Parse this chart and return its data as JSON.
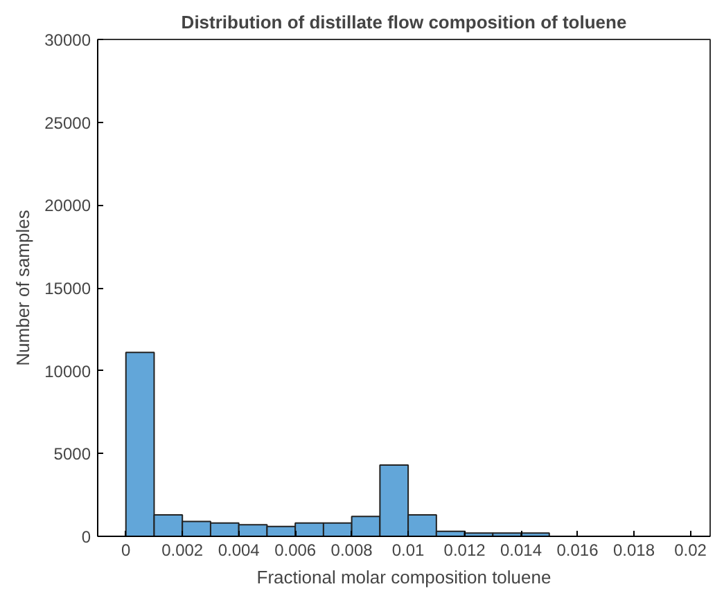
{
  "chart_data": {
    "type": "histogram",
    "title": "Distribution of distillate flow composition of toluene",
    "xlabel": "Fractional molar composition toluene",
    "ylabel": "Number of samples",
    "bins": [
      0,
      0.001,
      0.002,
      0.003,
      0.004,
      0.005,
      0.006,
      0.007,
      0.008,
      0.009,
      0.01,
      0.011,
      0.012,
      0.013,
      0.014,
      0.015,
      0.016,
      0.017,
      0.018,
      0.019,
      0.02
    ],
    "values": [
      11100,
      1300,
      900,
      800,
      700,
      600,
      800,
      800,
      1200,
      4300,
      1300,
      300,
      200,
      200,
      200,
      null,
      null,
      null,
      null,
      null
    ],
    "color": "#62a6d9",
    "xlim": [
      -0.001,
      0.0207
    ],
    "ylim": [
      0,
      30000
    ],
    "xticks": [
      0,
      0.002,
      0.004,
      0.006,
      0.008,
      0.01,
      0.012,
      0.014,
      0.016,
      0.018,
      0.02
    ],
    "yticks": [
      0,
      5000,
      10000,
      15000,
      20000,
      25000,
      30000
    ],
    "grid": false
  }
}
